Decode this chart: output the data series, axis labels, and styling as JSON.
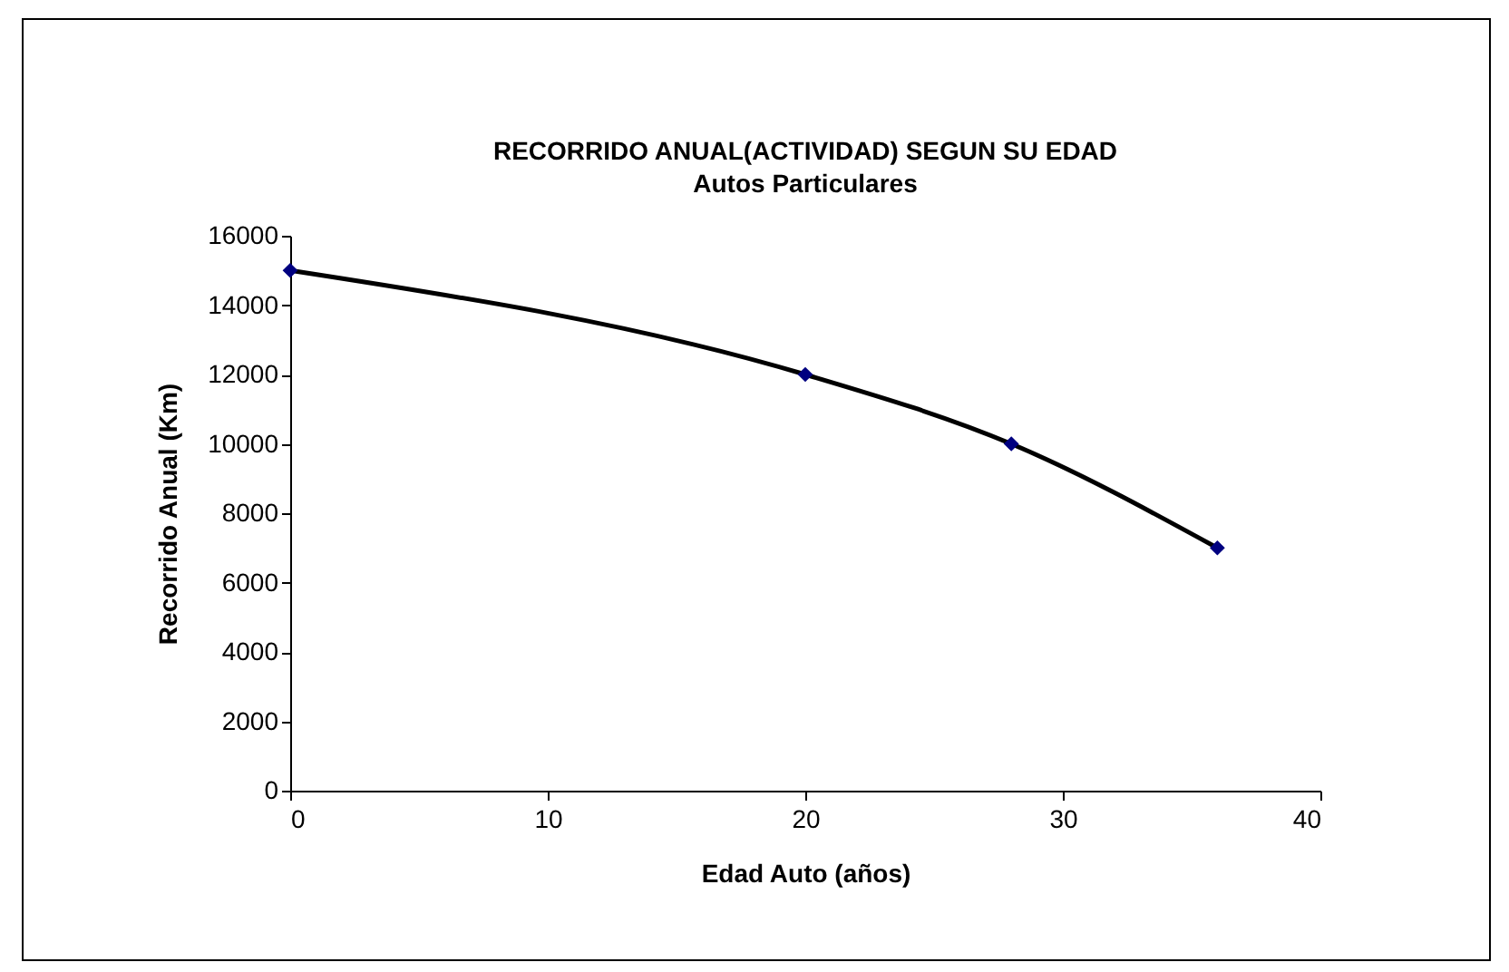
{
  "chart_data": {
    "type": "line",
    "title": "RECORRIDO ANUAL(ACTIVIDAD) SEGUN SU EDAD",
    "subtitle": "Autos Particulares",
    "xlabel": "Edad Auto (años)",
    "ylabel": "Recorrido Anual (Km)",
    "x": [
      0,
      20,
      28,
      36
    ],
    "series": [
      {
        "color": "#000000",
        "values": [
          15000,
          12000,
          10000,
          7000
        ]
      }
    ],
    "xlim": [
      0,
      40
    ],
    "xticks": [
      0,
      10,
      20,
      30,
      40
    ],
    "ylim": [
      0,
      16000
    ],
    "yticks": [
      0,
      2000,
      4000,
      6000,
      8000,
      10000,
      12000,
      14000,
      16000
    ],
    "marker": "diamond",
    "line_style": "solid",
    "legend": false,
    "grid": false
  }
}
